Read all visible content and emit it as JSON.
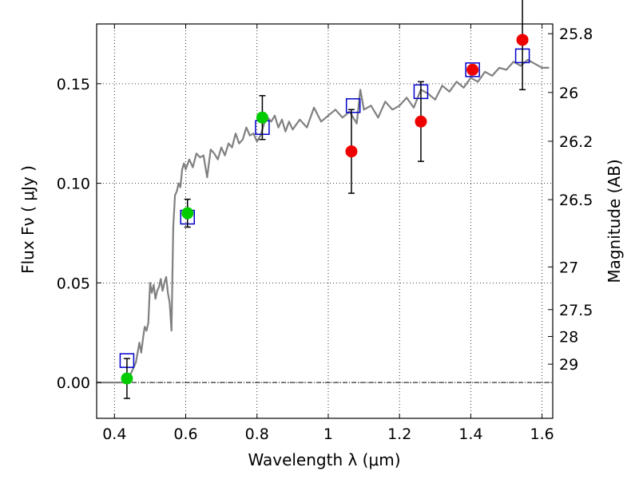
{
  "chart_data": {
    "type": "scatter",
    "xlabel": "Wavelength  λ (μm)",
    "ylabel": "Flux  Fν  ( μJy )",
    "y2label": "Magnitude (AB)",
    "xlim": [
      0.35,
      1.63
    ],
    "ylim": [
      -0.018,
      0.18
    ],
    "grid": true,
    "x_ticks": [
      0.4,
      0.6,
      0.8,
      1.0,
      1.2,
      1.4,
      1.6
    ],
    "x_tick_labels": [
      "0.4",
      "0.6",
      "0.8",
      "1",
      "1.2",
      "1.4",
      "1.6"
    ],
    "y_ticks": [
      0.0,
      0.05,
      0.1,
      0.15
    ],
    "y_tick_labels": [
      "0.00",
      "0.05",
      "0.10",
      "0.15"
    ],
    "magnitude_ticks": [
      {
        "label": "25.8",
        "flux": 0.1751
      },
      {
        "label": "26",
        "flux": 0.1456
      },
      {
        "label": "26.2",
        "flux": 0.1211
      },
      {
        "label": "26.5",
        "flux": 0.0918
      },
      {
        "label": "27",
        "flux": 0.058
      },
      {
        "label": "27.5",
        "flux": 0.0366
      },
      {
        "label": "28",
        "flux": 0.0231
      },
      {
        "label": "29",
        "flux": 0.0092
      }
    ],
    "series": [
      {
        "kind": "line",
        "color": "#808080",
        "x": [
          0.35,
          0.38,
          0.41,
          0.43,
          0.44,
          0.45,
          0.46,
          0.47,
          0.475,
          0.48,
          0.485,
          0.49,
          0.495,
          0.5,
          0.505,
          0.51,
          0.515,
          0.52,
          0.525,
          0.53,
          0.535,
          0.54,
          0.545,
          0.55,
          0.555,
          0.56,
          0.565,
          0.57,
          0.575,
          0.58,
          0.585,
          0.59,
          0.595,
          0.6,
          0.61,
          0.62,
          0.63,
          0.64,
          0.65,
          0.66,
          0.67,
          0.68,
          0.69,
          0.7,
          0.71,
          0.72,
          0.73,
          0.74,
          0.75,
          0.76,
          0.77,
          0.78,
          0.79,
          0.8,
          0.81,
          0.82,
          0.83,
          0.84,
          0.85,
          0.86,
          0.87,
          0.88,
          0.89,
          0.9,
          0.92,
          0.94,
          0.96,
          0.98,
          1.0,
          1.02,
          1.04,
          1.06,
          1.08,
          1.09,
          1.1,
          1.12,
          1.14,
          1.16,
          1.18,
          1.2,
          1.22,
          1.24,
          1.26,
          1.28,
          1.3,
          1.32,
          1.34,
          1.36,
          1.38,
          1.4,
          1.42,
          1.44,
          1.46,
          1.48,
          1.5,
          1.52,
          1.54,
          1.56,
          1.58,
          1.6,
          1.62
        ],
        "y": [
          0.0,
          0.0,
          0.0,
          0.0,
          0.002,
          0.006,
          0.01,
          0.02,
          0.015,
          0.022,
          0.028,
          0.026,
          0.03,
          0.05,
          0.045,
          0.049,
          0.042,
          0.046,
          0.048,
          0.052,
          0.046,
          0.05,
          0.053,
          0.045,
          0.04,
          0.026,
          0.078,
          0.094,
          0.096,
          0.1,
          0.098,
          0.107,
          0.11,
          0.107,
          0.112,
          0.108,
          0.115,
          0.113,
          0.114,
          0.103,
          0.117,
          0.115,
          0.112,
          0.118,
          0.114,
          0.12,
          0.118,
          0.125,
          0.12,
          0.122,
          0.128,
          0.124,
          0.125,
          0.121,
          0.124,
          0.13,
          0.133,
          0.131,
          0.134,
          0.128,
          0.132,
          0.126,
          0.131,
          0.127,
          0.132,
          0.128,
          0.138,
          0.131,
          0.134,
          0.137,
          0.133,
          0.136,
          0.13,
          0.147,
          0.137,
          0.139,
          0.133,
          0.141,
          0.137,
          0.139,
          0.143,
          0.138,
          0.147,
          0.145,
          0.142,
          0.149,
          0.146,
          0.151,
          0.148,
          0.153,
          0.151,
          0.156,
          0.154,
          0.158,
          0.157,
          0.161,
          0.159,
          0.162,
          0.16,
          0.158,
          0.158
        ]
      },
      {
        "kind": "square",
        "color": "#0000cc",
        "x": [
          0.435,
          0.605,
          0.815,
          1.07,
          1.26,
          1.405,
          1.545
        ],
        "y": [
          0.011,
          0.083,
          0.128,
          0.139,
          0.146,
          0.157,
          0.164
        ]
      },
      {
        "kind": "circle",
        "color": "#00cc00",
        "x": [
          0.435,
          0.605,
          0.815
        ],
        "y": [
          0.002,
          0.085,
          0.133
        ],
        "err": [
          0.01,
          0.007,
          0.011
        ]
      },
      {
        "kind": "circle",
        "color": "#ee0000",
        "x": [
          1.065,
          1.26,
          1.405,
          1.545
        ],
        "y": [
          0.116,
          0.131,
          0.157,
          0.172
        ],
        "err": [
          0.021,
          0.02,
          0.0,
          0.025
        ]
      }
    ]
  }
}
